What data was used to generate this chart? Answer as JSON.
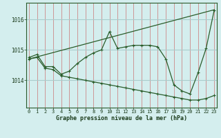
{
  "line1_x": [
    0,
    1,
    2,
    3,
    4,
    5,
    6,
    7,
    8,
    9,
    10,
    11,
    12,
    13,
    14,
    15,
    16,
    17,
    18,
    19,
    20,
    21,
    22,
    23
  ],
  "line1_y": [
    1014.75,
    1014.85,
    1014.45,
    1014.45,
    1014.2,
    1014.3,
    1014.55,
    1014.75,
    1014.9,
    1015.0,
    1015.6,
    1015.05,
    1015.1,
    1015.15,
    1015.15,
    1015.15,
    1015.1,
    1014.7,
    1013.85,
    1013.65,
    1013.55,
    1014.25,
    1015.05,
    1016.3
  ],
  "line2_x": [
    0,
    1,
    2,
    3,
    4,
    5,
    6,
    7,
    8,
    9,
    10,
    11,
    12,
    13,
    14,
    15,
    16,
    17,
    18,
    19,
    20,
    21,
    22,
    23
  ],
  "line2_y": [
    1014.7,
    1014.75,
    1014.4,
    1014.35,
    1014.15,
    1014.1,
    1014.05,
    1014.0,
    1013.95,
    1013.9,
    1013.85,
    1013.8,
    1013.75,
    1013.7,
    1013.65,
    1013.6,
    1013.55,
    1013.5,
    1013.45,
    1013.4,
    1013.35,
    1013.35,
    1013.4,
    1013.5
  ],
  "line3_x": [
    0,
    23
  ],
  "line3_y": [
    1014.7,
    1016.32
  ],
  "line_color": "#2a5c2a",
  "bg_color": "#d4eeee",
  "grid_color_v": "#cc8888",
  "grid_color_h": "#aacccc",
  "xlabel": "Graphe pression niveau de la mer (hPa)",
  "yticks": [
    1014,
    1015,
    1016
  ],
  "xticks": [
    0,
    1,
    2,
    3,
    4,
    5,
    6,
    7,
    8,
    9,
    10,
    11,
    12,
    13,
    14,
    15,
    16,
    17,
    18,
    19,
    20,
    21,
    22,
    23
  ],
  "ylim": [
    1013.1,
    1016.55
  ],
  "xlim": [
    -0.3,
    23.3
  ]
}
